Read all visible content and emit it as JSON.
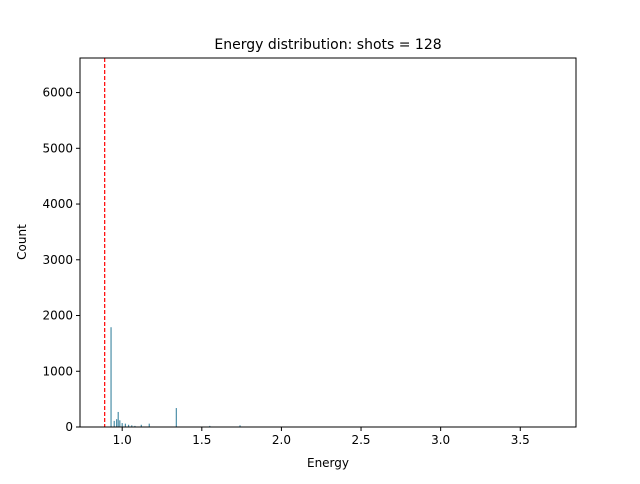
{
  "chart_data": {
    "type": "bar",
    "title": "Energy distribution: shots = 128",
    "xlabel": "Energy",
    "ylabel": "Count",
    "xlim": [
      0.735,
      3.85
    ],
    "ylim": [
      0,
      6620
    ],
    "x_ticks": [
      1.0,
      1.5,
      2.0,
      2.5,
      3.0,
      3.5
    ],
    "x_tick_labels": [
      "1.0",
      "1.5",
      "2.0",
      "2.5",
      "3.0",
      "3.5"
    ],
    "y_ticks": [
      0,
      1000,
      2000,
      3000,
      4000,
      5000,
      6000
    ],
    "y_tick_labels": [
      "0",
      "1000",
      "2000",
      "3000",
      "4000",
      "5000",
      "6000"
    ],
    "grid": false,
    "bar_color": "#4c8fa8",
    "reference_line": {
      "x": 0.89,
      "color": "#ff0000",
      "style": "dashed"
    },
    "series": [
      {
        "x": [
          0.93,
          0.95,
          0.965,
          0.975,
          0.985,
          1.0,
          1.02,
          1.04,
          1.06,
          1.08,
          1.12,
          1.17,
          1.34,
          1.55,
          1.74
        ],
        "values": [
          1790,
          110,
          140,
          270,
          120,
          70,
          60,
          40,
          30,
          20,
          40,
          60,
          340,
          20,
          30
        ]
      }
    ]
  }
}
